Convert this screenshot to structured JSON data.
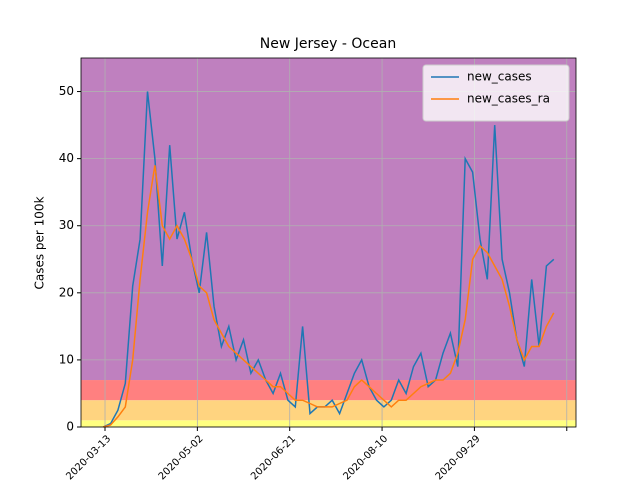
{
  "chart_data": {
    "type": "line",
    "title": "New Jersey - Ocean",
    "y_label": "Cases per 100k",
    "x": [
      "2020-03-12",
      "2020-03-16",
      "2020-03-20",
      "2020-03-24",
      "2020-03-28",
      "2020-04-01",
      "2020-04-05",
      "2020-04-09",
      "2020-04-13",
      "2020-04-17",
      "2020-04-21",
      "2020-04-25",
      "2020-04-29",
      "2020-05-03",
      "2020-05-07",
      "2020-05-11",
      "2020-05-15",
      "2020-05-19",
      "2020-05-23",
      "2020-05-27",
      "2020-05-31",
      "2020-06-04",
      "2020-06-08",
      "2020-06-12",
      "2020-06-16",
      "2020-06-20",
      "2020-06-24",
      "2020-06-28",
      "2020-07-02",
      "2020-07-06",
      "2020-07-10",
      "2020-07-14",
      "2020-07-18",
      "2020-07-22",
      "2020-07-26",
      "2020-07-30",
      "2020-08-03",
      "2020-08-07",
      "2020-08-11",
      "2020-08-15",
      "2020-08-19",
      "2020-08-23",
      "2020-08-27",
      "2020-08-31",
      "2020-09-04",
      "2020-09-08",
      "2020-09-12",
      "2020-09-16",
      "2020-09-20",
      "2020-09-24",
      "2020-09-28",
      "2020-10-02",
      "2020-10-06",
      "2020-10-10",
      "2020-10-14",
      "2020-10-18",
      "2020-10-22",
      "2020-10-26",
      "2020-10-30",
      "2020-11-03",
      "2020-11-07",
      "2020-11-11"
    ],
    "series": [
      {
        "name": "new_cases",
        "color": "#1f77b4",
        "values": [
          0,
          0.5,
          2.5,
          6.5,
          21,
          28,
          50,
          40,
          24,
          42,
          28,
          32,
          25,
          20,
          29,
          18,
          12,
          15,
          10,
          13,
          8,
          10,
          7,
          5,
          8,
          4,
          3,
          15,
          2,
          3,
          3,
          4,
          2,
          5,
          8,
          10,
          6,
          4,
          3,
          4,
          7,
          5,
          9,
          11,
          6,
          7,
          11,
          14,
          9,
          40,
          38,
          28,
          22,
          45,
          25,
          20,
          13,
          9,
          22,
          12,
          24,
          25
        ]
      },
      {
        "name": "new_cases_ra",
        "color": "#ff7f0e",
        "values": [
          0,
          0.3,
          1.5,
          3,
          10,
          22,
          32,
          39,
          30,
          28,
          30,
          28,
          25,
          21,
          20,
          16,
          14,
          12,
          11,
          10,
          9,
          8,
          7,
          6,
          6,
          5,
          4,
          4,
          3.5,
          3,
          3,
          3,
          3.5,
          4,
          6,
          7,
          6,
          5,
          4,
          3,
          4,
          4,
          5,
          6,
          6.5,
          7,
          7,
          8,
          11,
          16,
          25,
          27,
          26,
          24,
          22,
          18,
          13,
          10,
          12,
          12,
          15,
          17
        ]
      }
    ],
    "bands": [
      {
        "from": 0,
        "to": 1,
        "color": "#ffff80"
      },
      {
        "from": 1,
        "to": 4,
        "color": "#ffd480"
      },
      {
        "from": 4,
        "to": 7,
        "color": "#ff8080"
      },
      {
        "from": 7,
        "to": 55,
        "color": "#bf80bf"
      }
    ],
    "xlim": [
      "2020-02-29",
      "2020-11-23"
    ],
    "xticks": [
      "2020-03-13",
      "2020-05-02",
      "2020-06-21",
      "2020-08-10",
      "2020-09-29",
      {
        "value": "2020-11-18",
        "label": null
      }
    ],
    "ylim": [
      0,
      55
    ],
    "yticks": [
      0,
      10,
      20,
      30,
      40,
      50
    ],
    "grid": true,
    "legend": "upper right"
  }
}
